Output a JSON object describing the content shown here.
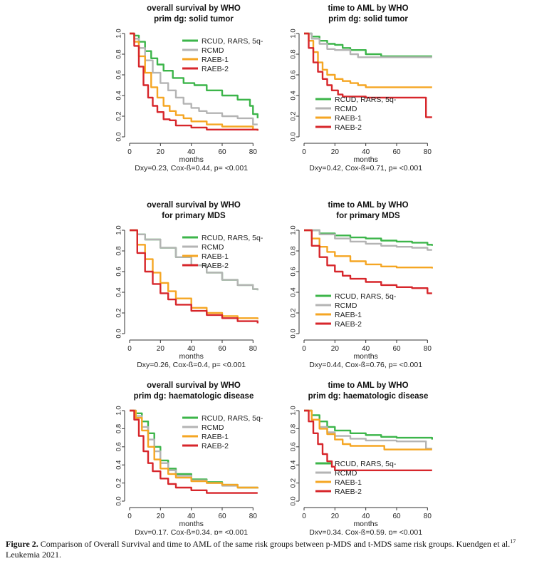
{
  "colors": {
    "green": "#3cb54a",
    "grey": "#b4b4b4",
    "orange": "#f5a623",
    "red": "#d7262b"
  },
  "legend_labels": [
    "RCUD, RARS, 5q-",
    "RCMD",
    "RAEB-1",
    "RAEB-2"
  ],
  "caption": {
    "label": "Figure 2.",
    "text1": " Comparison of Overall Survival and time to AML of the same risk groups between p-MDS and t-MDS same risk groups. Kuendgen et al.",
    "ref": "17",
    "text2": " Leukemia 2021."
  },
  "chart_data": [
    {
      "type": "line",
      "title": [
        "overall survival by WHO",
        "prim dg: solid tumor"
      ],
      "xlabel": "months",
      "ylabel": "",
      "xlim": [
        0,
        84
      ],
      "ylim": [
        0,
        1
      ],
      "xticks": [
        0,
        20,
        40,
        60,
        80
      ],
      "yticks": [
        0.0,
        0.2,
        0.4,
        0.6,
        0.8,
        1.0
      ],
      "legend_position": "top-right",
      "stat": "Dxy=0.23, Cox-ß=0.44, p= <0.001",
      "series": [
        {
          "name": "RCUD, RARS, 5q-",
          "color": "green",
          "x": [
            0,
            3,
            6,
            10,
            14,
            18,
            22,
            28,
            35,
            42,
            50,
            60,
            70,
            78,
            80,
            83
          ],
          "y": [
            1.0,
            0.98,
            0.92,
            0.83,
            0.76,
            0.7,
            0.64,
            0.57,
            0.52,
            0.5,
            0.45,
            0.4,
            0.36,
            0.3,
            0.22,
            0.18
          ]
        },
        {
          "name": "RCMD",
          "color": "grey",
          "x": [
            0,
            3,
            6,
            10,
            15,
            20,
            25,
            30,
            35,
            40,
            45,
            50,
            60,
            70,
            80,
            83
          ],
          "y": [
            1.0,
            0.95,
            0.86,
            0.74,
            0.62,
            0.52,
            0.45,
            0.38,
            0.32,
            0.28,
            0.25,
            0.23,
            0.2,
            0.18,
            0.12,
            0.12
          ]
        },
        {
          "name": "RAEB-1",
          "color": "orange",
          "x": [
            0,
            3,
            6,
            10,
            14,
            18,
            22,
            26,
            30,
            35,
            40,
            50,
            60,
            80,
            83
          ],
          "y": [
            1.0,
            0.92,
            0.78,
            0.62,
            0.48,
            0.38,
            0.3,
            0.25,
            0.21,
            0.18,
            0.15,
            0.12,
            0.1,
            0.07,
            0.06
          ]
        },
        {
          "name": "RAEB-2",
          "color": "red",
          "x": [
            0,
            3,
            6,
            9,
            12,
            15,
            18,
            22,
            26,
            30,
            40,
            50,
            60,
            83
          ],
          "y": [
            1.0,
            0.88,
            0.68,
            0.5,
            0.38,
            0.3,
            0.24,
            0.17,
            0.16,
            0.11,
            0.09,
            0.07,
            0.07,
            0.06
          ]
        }
      ]
    },
    {
      "type": "line",
      "title": [
        "time to AML by WHO",
        "prim dg: solid tumor"
      ],
      "xlabel": "months",
      "ylabel": "",
      "xlim": [
        0,
        84
      ],
      "ylim": [
        0,
        1
      ],
      "xticks": [
        0,
        20,
        40,
        60,
        80
      ],
      "yticks": [
        0.0,
        0.2,
        0.4,
        0.6,
        0.8,
        1.0
      ],
      "legend_position": "bottom-left",
      "stat": "Dxy=0.42, Cox-ß=0.71, p= <0.001",
      "series": [
        {
          "name": "RCUD, RARS, 5q-",
          "color": "green",
          "x": [
            0,
            5,
            10,
            15,
            20,
            25,
            30,
            40,
            50,
            83
          ],
          "y": [
            1.0,
            0.97,
            0.93,
            0.9,
            0.89,
            0.86,
            0.84,
            0.8,
            0.78,
            0.78
          ]
        },
        {
          "name": "RCMD",
          "color": "grey",
          "x": [
            0,
            5,
            10,
            15,
            20,
            30,
            35,
            40,
            83
          ],
          "y": [
            1.0,
            0.95,
            0.9,
            0.85,
            0.84,
            0.8,
            0.77,
            0.77,
            0.77
          ]
        },
        {
          "name": "RAEB-1",
          "color": "orange",
          "x": [
            0,
            3,
            6,
            9,
            12,
            15,
            20,
            25,
            30,
            35,
            40,
            83
          ],
          "y": [
            1.0,
            0.93,
            0.82,
            0.72,
            0.65,
            0.6,
            0.56,
            0.54,
            0.52,
            0.5,
            0.48,
            0.48
          ]
        },
        {
          "name": "RAEB-2",
          "color": "red",
          "x": [
            0,
            3,
            6,
            9,
            12,
            15,
            18,
            22,
            25,
            30,
            40,
            55,
            70,
            79,
            79,
            83
          ],
          "y": [
            1.0,
            0.86,
            0.72,
            0.63,
            0.56,
            0.5,
            0.45,
            0.41,
            0.39,
            0.39,
            0.38,
            0.38,
            0.38,
            0.38,
            0.19,
            0.19
          ]
        }
      ]
    },
    {
      "type": "line",
      "title": [
        "overall survival by WHO",
        "for primary MDS"
      ],
      "xlabel": "months",
      "ylabel": "",
      "xlim": [
        0,
        84
      ],
      "ylim": [
        0,
        1
      ],
      "xticks": [
        0,
        20,
        40,
        60,
        80
      ],
      "yticks": [
        0.0,
        0.2,
        0.4,
        0.6,
        0.8,
        1.0
      ],
      "legend_position": "top-right",
      "stat": "Dxy=0.26, Cox-ß=0.4, p= <0.001",
      "series": [
        {
          "name": "RCUD, RARS, 5q-",
          "color": "green",
          "x": [
            0,
            5,
            10,
            20,
            30,
            40,
            50,
            60,
            70,
            80,
            83
          ],
          "y": [
            1.0,
            0.96,
            0.91,
            0.83,
            0.74,
            0.66,
            0.59,
            0.52,
            0.47,
            0.43,
            0.42
          ]
        },
        {
          "name": "RCMD",
          "color": "grey",
          "x": [
            0,
            5,
            10,
            20,
            30,
            40,
            50,
            60,
            70,
            80,
            83
          ],
          "y": [
            1.0,
            0.96,
            0.91,
            0.83,
            0.74,
            0.66,
            0.59,
            0.52,
            0.47,
            0.43,
            0.42
          ]
        },
        {
          "name": "RAEB-1",
          "color": "orange",
          "x": [
            0,
            5,
            10,
            15,
            20,
            25,
            30,
            40,
            50,
            60,
            70,
            83
          ],
          "y": [
            1.0,
            0.86,
            0.72,
            0.59,
            0.49,
            0.41,
            0.34,
            0.25,
            0.2,
            0.17,
            0.15,
            0.14
          ]
        },
        {
          "name": "RAEB-2",
          "color": "red",
          "x": [
            0,
            5,
            10,
            15,
            20,
            25,
            30,
            40,
            50,
            60,
            70,
            83
          ],
          "y": [
            1.0,
            0.78,
            0.6,
            0.48,
            0.39,
            0.33,
            0.28,
            0.22,
            0.18,
            0.15,
            0.12,
            0.1
          ]
        }
      ]
    },
    {
      "type": "line",
      "title": [
        "time to AML by WHO",
        "for primary MDS"
      ],
      "xlabel": "months",
      "ylabel": "",
      "xlim": [
        0,
        84
      ],
      "ylim": [
        0,
        1
      ],
      "xticks": [
        0,
        20,
        40,
        60,
        80
      ],
      "yticks": [
        0.0,
        0.2,
        0.4,
        0.6,
        0.8,
        1.0
      ],
      "legend_position": "bottom-left",
      "stat": "Dxy=0.44, Cox-ß=0.76, p= <0.001",
      "series": [
        {
          "name": "RCUD, RARS, 5q-",
          "color": "green",
          "x": [
            0,
            10,
            20,
            30,
            40,
            50,
            60,
            70,
            80,
            83
          ],
          "y": [
            1.0,
            0.97,
            0.95,
            0.93,
            0.92,
            0.9,
            0.89,
            0.88,
            0.86,
            0.85
          ]
        },
        {
          "name": "RCMD",
          "color": "grey",
          "x": [
            0,
            10,
            20,
            30,
            40,
            50,
            60,
            70,
            80,
            83
          ],
          "y": [
            1.0,
            0.96,
            0.92,
            0.89,
            0.87,
            0.85,
            0.84,
            0.83,
            0.81,
            0.81
          ]
        },
        {
          "name": "RAEB-1",
          "color": "orange",
          "x": [
            0,
            5,
            10,
            15,
            20,
            30,
            40,
            50,
            60,
            70,
            83
          ],
          "y": [
            1.0,
            0.92,
            0.84,
            0.79,
            0.75,
            0.7,
            0.67,
            0.65,
            0.64,
            0.64,
            0.63
          ]
        },
        {
          "name": "RAEB-2",
          "color": "red",
          "x": [
            0,
            5,
            10,
            15,
            20,
            25,
            30,
            40,
            50,
            60,
            70,
            80,
            83
          ],
          "y": [
            1.0,
            0.85,
            0.74,
            0.66,
            0.6,
            0.56,
            0.53,
            0.5,
            0.47,
            0.45,
            0.44,
            0.39,
            0.39
          ]
        }
      ]
    },
    {
      "type": "line",
      "title": [
        "overall survival by WHO",
        "prim dg: haematologic disease"
      ],
      "xlabel": "months",
      "ylabel": "",
      "xlim": [
        0,
        84
      ],
      "ylim": [
        0,
        1
      ],
      "xticks": [
        0,
        20,
        40,
        60,
        80
      ],
      "yticks": [
        0.0,
        0.2,
        0.4,
        0.6,
        0.8,
        1.0
      ],
      "legend_position": "top-right",
      "stat": "Dxy=0.17, Cox-ß=0.34, p= <0.001",
      "series": [
        {
          "name": "RCUD, RARS, 5q-",
          "color": "green",
          "x": [
            0,
            4,
            8,
            12,
            16,
            20,
            25,
            30,
            40,
            50,
            60,
            70,
            83
          ],
          "y": [
            1.0,
            0.97,
            0.88,
            0.75,
            0.6,
            0.45,
            0.36,
            0.3,
            0.24,
            0.21,
            0.18,
            0.15,
            0.14
          ]
        },
        {
          "name": "RCMD",
          "color": "grey",
          "x": [
            0,
            4,
            8,
            12,
            16,
            20,
            25,
            30,
            40,
            50,
            60,
            70,
            83
          ],
          "y": [
            1.0,
            0.94,
            0.82,
            0.68,
            0.55,
            0.42,
            0.34,
            0.28,
            0.23,
            0.2,
            0.17,
            0.15,
            0.14
          ]
        },
        {
          "name": "RAEB-1",
          "color": "orange",
          "x": [
            0,
            4,
            8,
            12,
            16,
            20,
            25,
            30,
            40,
            50,
            60,
            70,
            83
          ],
          "y": [
            1.0,
            0.92,
            0.78,
            0.6,
            0.46,
            0.36,
            0.3,
            0.26,
            0.22,
            0.2,
            0.18,
            0.15,
            0.14
          ]
        },
        {
          "name": "RAEB-2",
          "color": "red",
          "x": [
            0,
            3,
            6,
            9,
            12,
            15,
            20,
            25,
            30,
            40,
            50,
            83
          ],
          "y": [
            1.0,
            0.9,
            0.72,
            0.55,
            0.42,
            0.33,
            0.25,
            0.19,
            0.15,
            0.12,
            0.09,
            0.09
          ]
        }
      ]
    },
    {
      "type": "line",
      "title": [
        "time to AML by WHO",
        "prim dg: haematologic disease"
      ],
      "xlabel": "months",
      "ylabel": "",
      "xlim": [
        0,
        84
      ],
      "ylim": [
        0,
        1
      ],
      "xticks": [
        0,
        20,
        40,
        60,
        80
      ],
      "yticks": [
        0.0,
        0.2,
        0.4,
        0.6,
        0.8,
        1.0
      ],
      "legend_position": "bottom-left",
      "stat": "Dxy=0.34, Cox-ß=0.59, p= <0.001",
      "series": [
        {
          "name": "RCUD, RARS, 5q-",
          "color": "green",
          "x": [
            0,
            5,
            10,
            15,
            20,
            30,
            40,
            50,
            60,
            83
          ],
          "y": [
            1.0,
            0.95,
            0.88,
            0.82,
            0.78,
            0.75,
            0.73,
            0.71,
            0.7,
            0.68
          ]
        },
        {
          "name": "RCMD",
          "color": "grey",
          "x": [
            0,
            5,
            10,
            15,
            20,
            30,
            40,
            60,
            79,
            79,
            83
          ],
          "y": [
            1.0,
            0.9,
            0.82,
            0.76,
            0.72,
            0.69,
            0.67,
            0.66,
            0.66,
            0.58,
            0.58
          ]
        },
        {
          "name": "RAEB-1",
          "color": "orange",
          "x": [
            0,
            5,
            10,
            15,
            20,
            25,
            30,
            40,
            50,
            52,
            83
          ],
          "y": [
            1.0,
            0.9,
            0.8,
            0.74,
            0.68,
            0.63,
            0.61,
            0.61,
            0.61,
            0.57,
            0.57
          ]
        },
        {
          "name": "RAEB-2",
          "color": "red",
          "x": [
            0,
            3,
            6,
            9,
            12,
            15,
            18,
            20,
            83
          ],
          "y": [
            1.0,
            0.88,
            0.75,
            0.63,
            0.52,
            0.44,
            0.38,
            0.34,
            0.34
          ]
        }
      ]
    }
  ]
}
